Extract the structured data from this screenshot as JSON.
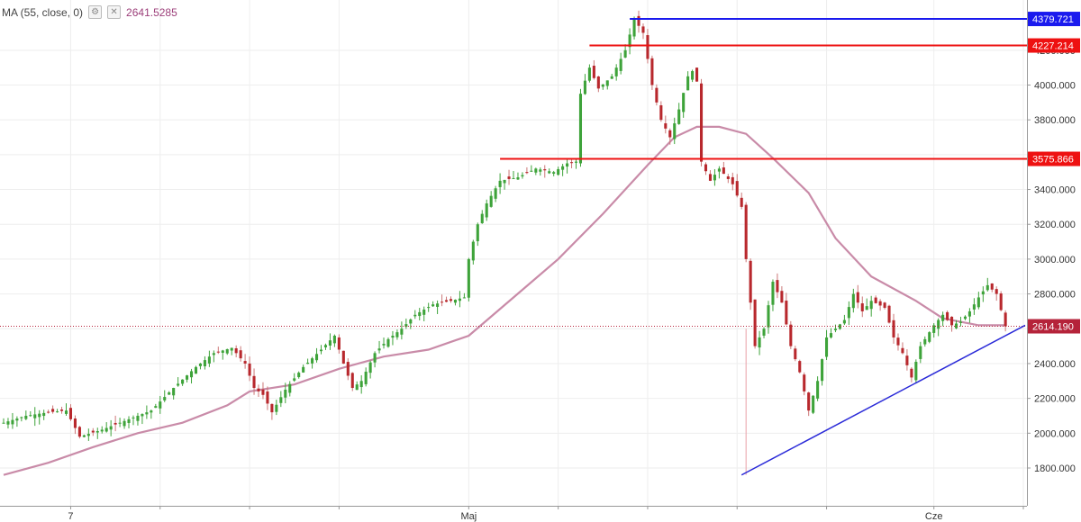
{
  "indicator": {
    "title": "MA (55, close, 0)",
    "value": "2641.5285",
    "controls": [
      "gear-icon",
      "close-icon"
    ]
  },
  "chart_data": {
    "type": "candlestick",
    "y_axis": {
      "range": [
        1700,
        4500
      ],
      "ticks": [
        {
          "value": 1800,
          "label": "1800.000"
        },
        {
          "value": 2000,
          "label": "2000.000"
        },
        {
          "value": 2200,
          "label": "2200.000"
        },
        {
          "value": 2400,
          "label": "2400.000"
        },
        {
          "value": 2600,
          "label": "2600.000"
        },
        {
          "value": 2800,
          "label": "2800.000"
        },
        {
          "value": 3000,
          "label": "3000.000"
        },
        {
          "value": 3200,
          "label": "3200.000"
        },
        {
          "value": 3400,
          "label": "3400.000"
        },
        {
          "value": 3600,
          "label": "3600.000"
        },
        {
          "value": 3800,
          "label": "3800.000"
        },
        {
          "value": 4000,
          "label": "4000.000"
        },
        {
          "value": 4200,
          "label": "4200.000"
        }
      ]
    },
    "x_axis": {
      "labels": [
        {
          "text": "7",
          "bar": 15
        },
        {
          "text": "Maj",
          "bar": 104
        },
        {
          "text": "Cze",
          "bar": 208
        }
      ],
      "grid_bars": [
        15,
        35,
        55,
        75,
        104,
        124,
        144,
        164,
        184,
        208,
        228
      ]
    },
    "price_levels": [
      {
        "value": 4379.721,
        "label": "4379.721",
        "color": "#1a1aee",
        "from_bar": 140
      },
      {
        "value": 4227.214,
        "label": "4227.214",
        "color": "#ee1111",
        "from_bar": 131
      },
      {
        "value": 3575.866,
        "label": "3575.866",
        "color": "#ee1111",
        "from_bar": 111
      }
    ],
    "last_price": {
      "value": 2614.19,
      "label": "2614.190",
      "color": "#b5233a"
    },
    "trendline": {
      "color": "#2a2ad8",
      "points": [
        [
          165,
          1760
        ],
        [
          228,
          2620
        ]
      ]
    },
    "moving_average": {
      "name": "MA (55, close, 0)",
      "color": "#c98ba8",
      "points": [
        [
          0,
          1760
        ],
        [
          10,
          1830
        ],
        [
          20,
          1920
        ],
        [
          30,
          2000
        ],
        [
          40,
          2060
        ],
        [
          50,
          2160
        ],
        [
          55,
          2240
        ],
        [
          65,
          2280
        ],
        [
          75,
          2370
        ],
        [
          85,
          2440
        ],
        [
          95,
          2480
        ],
        [
          104,
          2560
        ],
        [
          114,
          2780
        ],
        [
          124,
          3000
        ],
        [
          134,
          3260
        ],
        [
          144,
          3540
        ],
        [
          150,
          3700
        ],
        [
          155,
          3760
        ],
        [
          160,
          3760
        ],
        [
          166,
          3720
        ],
        [
          172,
          3580
        ],
        [
          180,
          3380
        ],
        [
          186,
          3120
        ],
        [
          194,
          2900
        ],
        [
          204,
          2760
        ],
        [
          210,
          2660
        ],
        [
          218,
          2620
        ],
        [
          224,
          2620
        ]
      ]
    },
    "ohlc_anchors": [
      [
        0,
        2060
      ],
      [
        5,
        2100
      ],
      [
        10,
        2120
      ],
      [
        14,
        2130
      ],
      [
        17,
        1980
      ],
      [
        22,
        2020
      ],
      [
        28,
        2080
      ],
      [
        33,
        2130
      ],
      [
        38,
        2260
      ],
      [
        43,
        2380
      ],
      [
        47,
        2460
      ],
      [
        51,
        2490
      ],
      [
        54,
        2400
      ],
      [
        56,
        2260
      ],
      [
        58,
        2220
      ],
      [
        60,
        2120
      ],
      [
        63,
        2250
      ],
      [
        67,
        2380
      ],
      [
        71,
        2480
      ],
      [
        74,
        2560
      ],
      [
        76,
        2400
      ],
      [
        78,
        2260
      ],
      [
        80,
        2300
      ],
      [
        83,
        2460
      ],
      [
        86,
        2540
      ],
      [
        89,
        2600
      ],
      [
        92,
        2680
      ],
      [
        96,
        2740
      ],
      [
        100,
        2760
      ],
      [
        103,
        2780
      ],
      [
        104,
        3000
      ],
      [
        106,
        3200
      ],
      [
        108,
        3320
      ],
      [
        111,
        3450
      ],
      [
        115,
        3470
      ],
      [
        119,
        3520
      ],
      [
        123,
        3500
      ],
      [
        126,
        3550
      ],
      [
        128,
        3560
      ],
      [
        129,
        3950
      ],
      [
        131,
        4100
      ],
      [
        133,
        3980
      ],
      [
        136,
        4050
      ],
      [
        139,
        4200
      ],
      [
        141,
        4380
      ],
      [
        143,
        4300
      ],
      [
        145,
        4000
      ],
      [
        147,
        3800
      ],
      [
        149,
        3700
      ],
      [
        151,
        3860
      ],
      [
        153,
        4050
      ],
      [
        154,
        4080
      ],
      [
        155,
        4020
      ],
      [
        156,
        3560
      ],
      [
        158,
        3450
      ],
      [
        160,
        3520
      ],
      [
        163,
        3430
      ],
      [
        165,
        3300
      ],
      [
        166,
        3000
      ],
      [
        168,
        2500
      ],
      [
        170,
        2600
      ],
      [
        172,
        2870
      ],
      [
        174,
        2750
      ],
      [
        176,
        2500
      ],
      [
        178,
        2350
      ],
      [
        180,
        2130
      ],
      [
        182,
        2300
      ],
      [
        184,
        2550
      ],
      [
        186,
        2600
      ],
      [
        188,
        2650
      ],
      [
        190,
        2800
      ],
      [
        192,
        2700
      ],
      [
        194,
        2760
      ],
      [
        197,
        2720
      ],
      [
        199,
        2550
      ],
      [
        201,
        2460
      ],
      [
        203,
        2320
      ],
      [
        205,
        2500
      ],
      [
        208,
        2620
      ],
      [
        210,
        2680
      ],
      [
        212,
        2620
      ],
      [
        214,
        2640
      ],
      [
        216,
        2700
      ],
      [
        218,
        2780
      ],
      [
        220,
        2850
      ],
      [
        222,
        2800
      ],
      [
        224,
        2614
      ]
    ]
  }
}
